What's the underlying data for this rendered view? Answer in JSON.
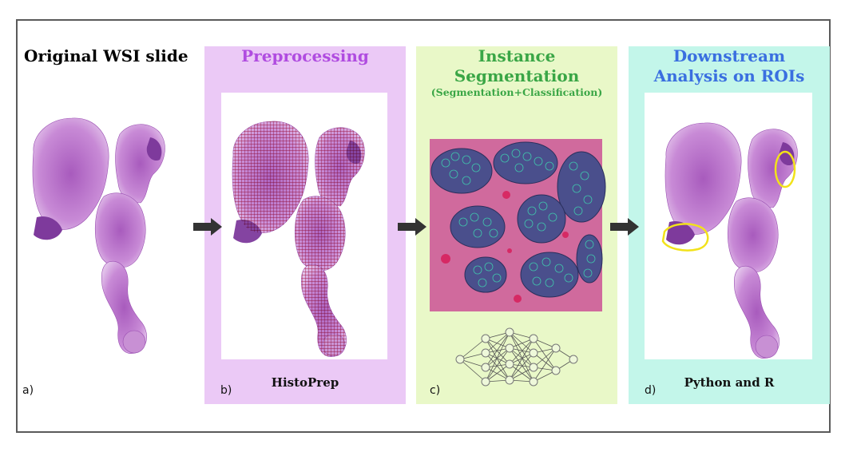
{
  "panels": {
    "a": {
      "title": "Original WSI slide",
      "letter": "a)"
    },
    "b": {
      "title": "Preprocessing",
      "letter": "b)",
      "tool": "HistoPrep"
    },
    "c": {
      "title_line1": "Instance",
      "title_line2": "Segmentation",
      "subtitle": "(Segmentation+Classification)",
      "letter": "c)"
    },
    "d": {
      "title_line1": "Downstream",
      "title_line2": "Analysis on ROIs",
      "letter": "d)",
      "tool": "Python and R"
    }
  },
  "colors": {
    "preprocessing_bg": "#ebc9f6",
    "segmentation_bg": "#e9f8c8",
    "analysis_bg": "#c3f6ea",
    "preprocessing_title": "#b04ce0",
    "segmentation_title": "#3aa646",
    "analysis_title": "#3a6fe0",
    "roi_outline": "#f2e21a",
    "tissue": "#b873c8",
    "arrow": "#333333"
  },
  "icons": [
    "right-arrow-icon",
    "neural-network-icon"
  ]
}
